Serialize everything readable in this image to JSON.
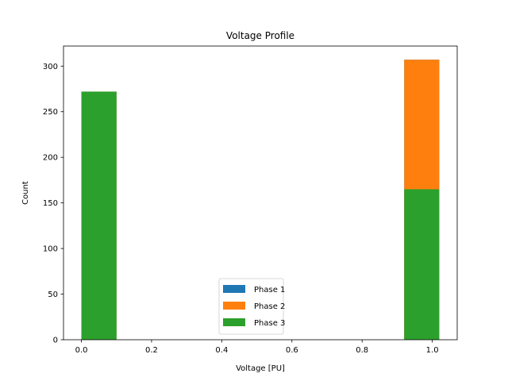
{
  "chart_data": {
    "type": "bar",
    "title": "Voltage Profile",
    "xlabel": "Voltage [PU]",
    "ylabel": "Count",
    "xlim": [
      -0.051,
      1.071
    ],
    "ylim": [
      0,
      322
    ],
    "x_ticks": [
      "0.0",
      "0.2",
      "0.4",
      "0.6",
      "0.8",
      "1.0"
    ],
    "y_ticks": [
      "0",
      "50",
      "100",
      "150",
      "200",
      "250",
      "300"
    ],
    "x_tick_values": [
      0.0,
      0.2,
      0.4,
      0.6,
      0.8,
      1.0
    ],
    "y_tick_values": [
      0,
      50,
      100,
      150,
      200,
      250,
      300
    ],
    "legend_position": "lower-center",
    "series": [
      {
        "name": "Phase 1",
        "color": "#1f77b4",
        "bins": [
          {
            "x0": 0.0,
            "x1": 0.1,
            "value": 272
          },
          {
            "x0": 0.92,
            "x1": 1.02,
            "value": 307
          }
        ]
      },
      {
        "name": "Phase 2",
        "color": "#ff7f0e",
        "bins": [
          {
            "x0": 0.0,
            "x1": 0.1,
            "value": 272
          },
          {
            "x0": 0.92,
            "x1": 1.02,
            "value": 307
          }
        ]
      },
      {
        "name": "Phase 3",
        "color": "#2ca02c",
        "bins": [
          {
            "x0": 0.0,
            "x1": 0.1,
            "value": 272
          },
          {
            "x0": 0.92,
            "x1": 1.02,
            "value": 165
          }
        ]
      }
    ]
  }
}
